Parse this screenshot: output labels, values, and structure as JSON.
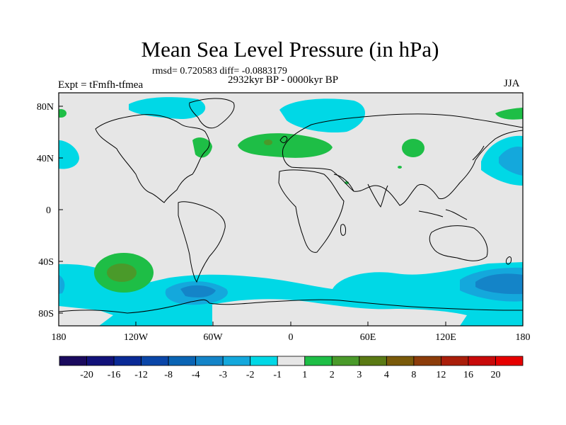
{
  "title": "Mean Sea Level Pressure (in hPa)",
  "stats": "rmsd= 0.720583 diff= -0.0883179",
  "experiment": "Expt = tFmfh-tfmea",
  "period": "2932kyr BP - 0000kyr BP",
  "season": "JJA",
  "axes": {
    "lat_labels": [
      "80N",
      "40N",
      "0",
      "40S",
      "80S"
    ],
    "lon_labels": [
      "180",
      "120W",
      "60W",
      "0",
      "60E",
      "120E",
      "180"
    ]
  },
  "colorbar": {
    "labels": [
      "-20",
      "-16",
      "-12",
      "-8",
      "-4",
      "-3",
      "-2",
      "-1",
      "1",
      "2",
      "3",
      "4",
      "8",
      "12",
      "16",
      "20"
    ],
    "colors": [
      "#1a0a5e",
      "#12127a",
      "#0a2a96",
      "#0a46a8",
      "#0a64b4",
      "#1484c8",
      "#14a8dc",
      "#00d8e6",
      "#e6e6e6",
      "#1ebe46",
      "#4a9a2a",
      "#5a7a14",
      "#7a5a0a",
      "#8c3c0a",
      "#aa1e0a",
      "#c80a0a",
      "#e60000"
    ]
  },
  "colors": {
    "neutral": "#e6e6e6",
    "level_minus1": "#00d8e6",
    "level_minus2": "#14a8dc",
    "level_minus3": "#1484c8",
    "level_plus1": "#1ebe46",
    "level_plus2": "#4a9a2a"
  }
}
